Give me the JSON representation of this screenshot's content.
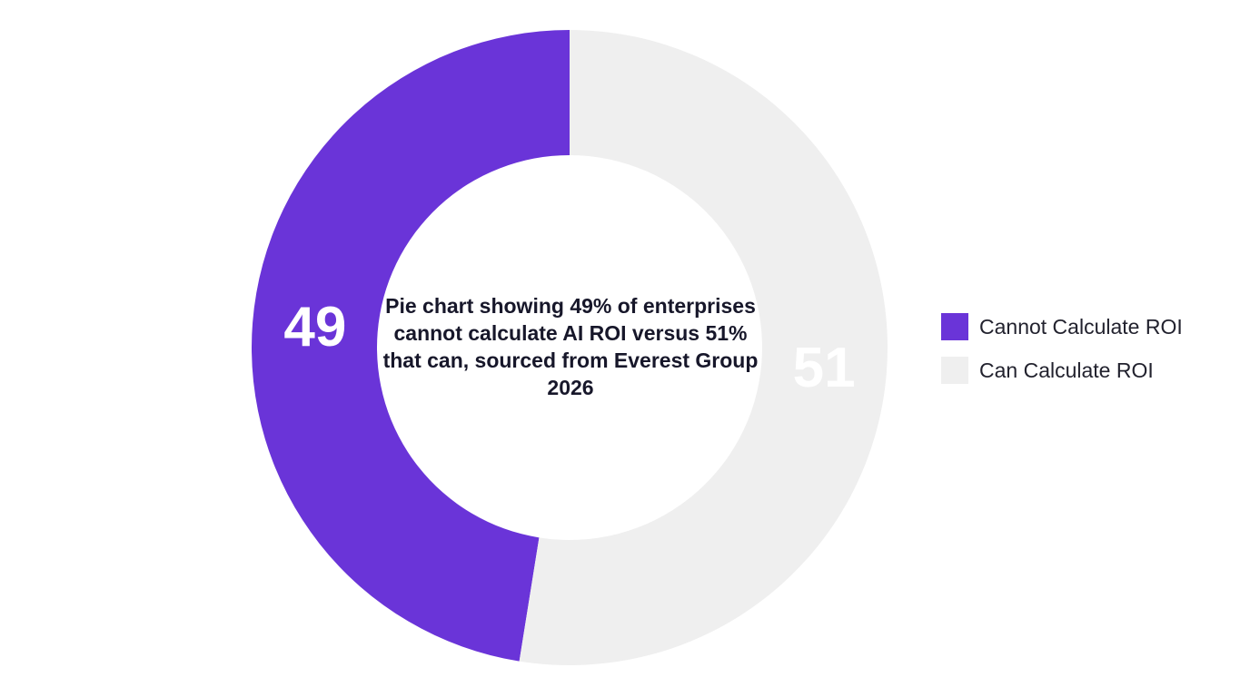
{
  "chart_data": {
    "type": "pie",
    "title": "Pie chart showing 49% of enterprises cannot calculate AI ROI versus 51% that can, sourced from Everest Group 2026",
    "categories": [
      "Cannot Calculate ROI",
      "Can Calculate ROI"
    ],
    "values": [
      49,
      51
    ],
    "colors": [
      "#6a34d8",
      "#efefef"
    ],
    "label_colors": [
      "#ffffff",
      "#ffffff"
    ],
    "legend_position": "right",
    "donut": true
  }
}
